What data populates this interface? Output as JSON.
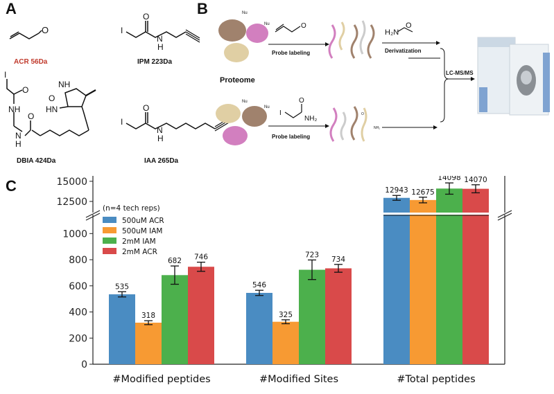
{
  "panels": {
    "a": "A",
    "b": "B",
    "c": "C"
  },
  "molecules": {
    "acr": {
      "name": "ACR  56Da",
      "color": "#c0392b"
    },
    "ipm": {
      "name": "IPM  223Da",
      "atoms": [
        "O",
        "I",
        "N",
        "H"
      ]
    },
    "dbia": {
      "name": "DBIA  424Da",
      "atoms": [
        "I",
        "O",
        "NH",
        "NH",
        "HN",
        "O",
        "O",
        "N",
        "H"
      ]
    },
    "iaa": {
      "name": "IAA  265Da",
      "atoms": [
        "O",
        "I",
        "N",
        "H"
      ]
    }
  },
  "workflow": {
    "proteome_label": "Proteome",
    "nu_label": "Nu",
    "probe_labeling_1": "Probe labeling",
    "probe_labeling_2": "Probe labeling",
    "derivatization": "Derivatization",
    "reagent_h2n": "H₂N",
    "reagent_o": "O",
    "iam_o": "O",
    "iam_i": "I",
    "iam_nh2": "NH₂",
    "product_o": "O",
    "product_nh2": "NH₂",
    "lcms": "LC-MS/MS"
  },
  "chart_data": {
    "type": "bar",
    "categories": [
      "#Modified peptides",
      "#Modified Sites",
      "#Total peptides"
    ],
    "series": [
      {
        "name": "500uM ACR",
        "color": "#4a8cc2",
        "values": [
          535,
          546,
          12943
        ],
        "errors": [
          20,
          20,
          300
        ]
      },
      {
        "name": "500uM IAM",
        "color": "#f79a33",
        "values": [
          318,
          325,
          12675
        ],
        "errors": [
          15,
          15,
          350
        ]
      },
      {
        "name": "2mM IAM",
        "color": "#4cb04c",
        "values": [
          682,
          723,
          14098
        ],
        "errors": [
          70,
          75,
          700
        ]
      },
      {
        "name": "2mM ACR",
        "color": "#d94a4a",
        "values": [
          746,
          734,
          14070
        ],
        "errors": [
          35,
          30,
          500
        ]
      }
    ],
    "legend_title": "(n=4 tech reps)",
    "y_ticks_lower": [
      0,
      200,
      400,
      600,
      800,
      1000
    ],
    "y_ticks_upper": [
      12500,
      15000
    ],
    "ylim_lower": [
      0,
      1150
    ],
    "ylim_upper": [
      11200,
      15500
    ],
    "axis_break": true,
    "legend_position": "upper-left"
  }
}
